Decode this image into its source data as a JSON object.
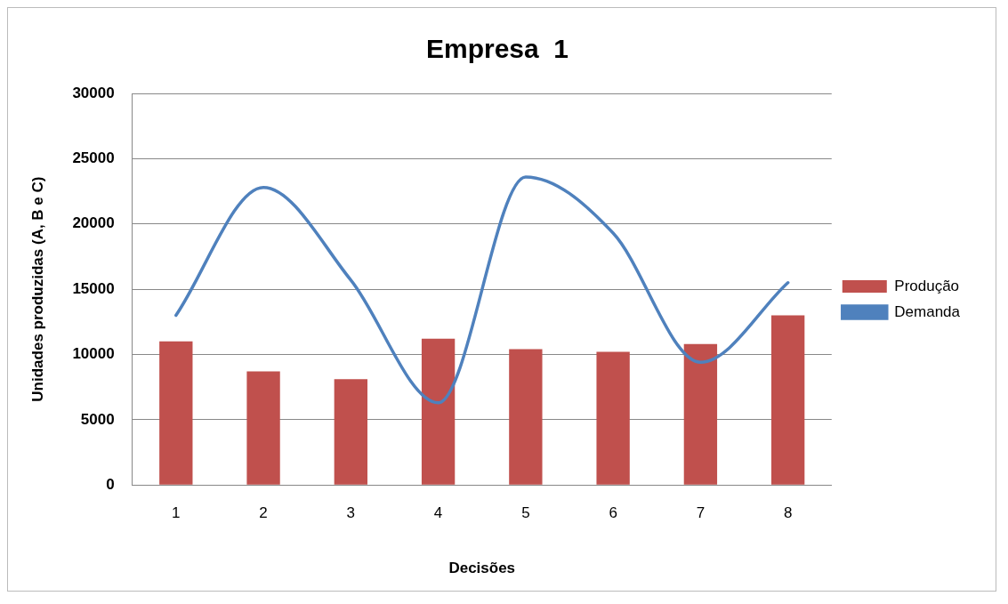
{
  "chart_data": {
    "type": "bar",
    "title": "Empresa  1",
    "xlabel": "Decisões",
    "ylabel": "Unidades produzidas (A, B e C)",
    "categories": [
      "1",
      "2",
      "3",
      "4",
      "5",
      "6",
      "7",
      "8"
    ],
    "series": [
      {
        "name": "Produção",
        "color": "#c0504d",
        "values": [
          11000,
          8700,
          8100,
          11200,
          10400,
          10200,
          10800,
          13000
        ]
      },
      {
        "name": "Demanda",
        "type": "line",
        "color": "#4f81bd",
        "values": [
          13000,
          22800,
          15700,
          6300,
          23600,
          19300,
          9400,
          15500
        ]
      }
    ],
    "ylim": [
      0,
      30000
    ],
    "yticks": [
      0,
      5000,
      10000,
      15000,
      20000,
      25000,
      30000
    ],
    "grid": "y",
    "legend": "right",
    "marker": "none"
  }
}
